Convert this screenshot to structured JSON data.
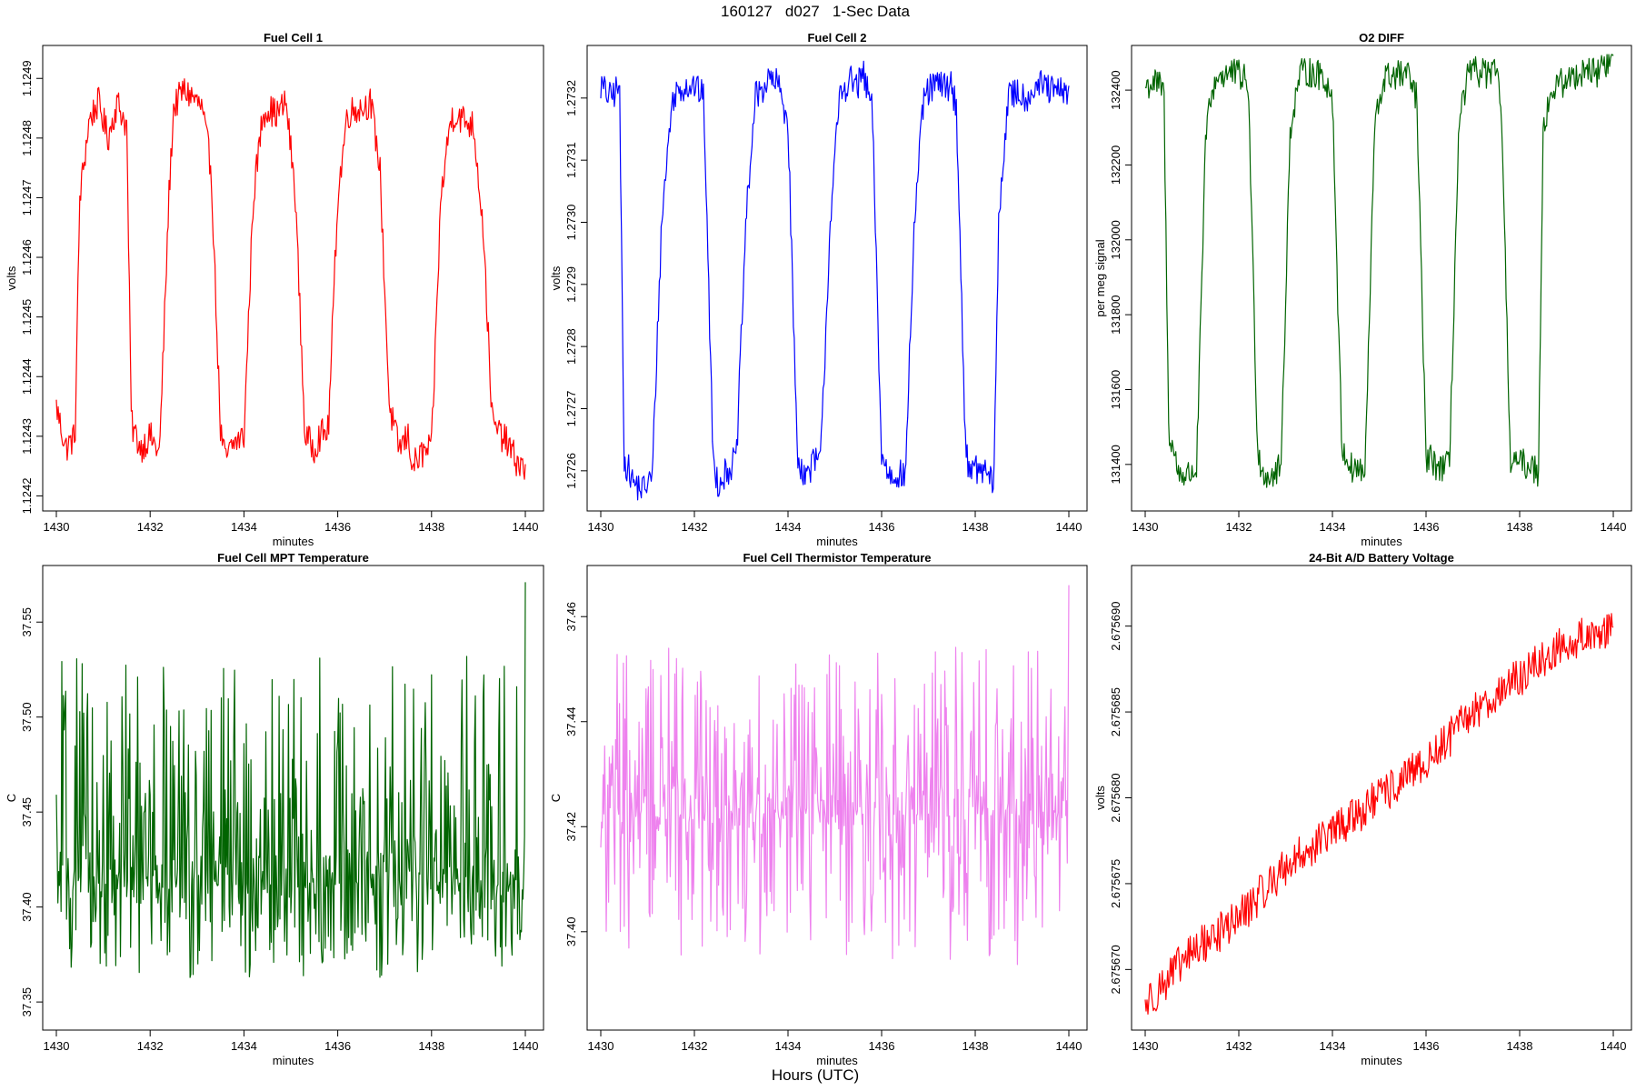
{
  "figure": {
    "title": "160127   d027   1-Sec Data",
    "xlabel": "Hours (UTC)"
  },
  "chart_data": [
    {
      "type": "line",
      "title": "Fuel Cell 1",
      "xlabel": "minutes",
      "ylabel": "volts",
      "color": "#ff0000",
      "xlim": [
        1430,
        1440
      ],
      "ylim": [
        1.12419,
        1.12494
      ],
      "xticks": [
        1430,
        1432,
        1434,
        1436,
        1438,
        1440
      ],
      "yticks": [
        1.1242,
        1.1243,
        1.1244,
        1.1245,
        1.1246,
        1.1247,
        1.1248,
        1.1249
      ],
      "ytick_labels": [
        "1.1242",
        "1.1243",
        "1.1244",
        "1.1245",
        "1.1246",
        "1.1247",
        "1.1248",
        "1.1249"
      ],
      "x": [
        1430.0,
        1430.2,
        1430.4,
        1430.5,
        1430.7,
        1430.9,
        1431.1,
        1431.3,
        1431.5,
        1431.6,
        1431.8,
        1432.0,
        1432.2,
        1432.4,
        1432.5,
        1432.7,
        1432.9,
        1433.1,
        1433.3,
        1433.5,
        1433.6,
        1433.8,
        1434.0,
        1434.2,
        1434.4,
        1434.5,
        1434.7,
        1434.9,
        1435.1,
        1435.3,
        1435.5,
        1435.6,
        1435.8,
        1436.0,
        1436.2,
        1436.4,
        1436.5,
        1436.7,
        1436.9,
        1437.1,
        1437.3,
        1437.5,
        1437.6,
        1437.8,
        1438.0,
        1438.2,
        1438.4,
        1438.5,
        1438.7,
        1438.9,
        1439.1,
        1439.3,
        1439.5,
        1439.6,
        1439.8,
        1440.0
      ],
      "y": [
        1.12435,
        1.12428,
        1.1243,
        1.1247,
        1.12483,
        1.12486,
        1.1248,
        1.12486,
        1.12482,
        1.12432,
        1.12428,
        1.1243,
        1.12427,
        1.1247,
        1.12485,
        1.12488,
        1.12487,
        1.12485,
        1.12475,
        1.12431,
        1.12426,
        1.12429,
        1.1243,
        1.1247,
        1.12484,
        1.12485,
        1.12484,
        1.12486,
        1.1247,
        1.1243,
        1.12428,
        1.1243,
        1.12431,
        1.1247,
        1.12484,
        1.12485,
        1.12485,
        1.12486,
        1.12475,
        1.12435,
        1.12428,
        1.1243,
        1.12425,
        1.12427,
        1.12428,
        1.1247,
        1.12483,
        1.12484,
        1.12483,
        1.12482,
        1.12465,
        1.12432,
        1.1243,
        1.12429,
        1.12426,
        1.12424
      ]
    },
    {
      "type": "line",
      "title": "Fuel Cell 2",
      "xlabel": "minutes",
      "ylabel": "volts",
      "color": "#0000ff",
      "xlim": [
        1430,
        1440
      ],
      "ylim": [
        1.27255,
        1.27327
      ],
      "xticks": [
        1430,
        1432,
        1434,
        1436,
        1438,
        1440
      ],
      "yticks": [
        1.2726,
        1.2727,
        1.2728,
        1.2729,
        1.273,
        1.2731,
        1.2732
      ],
      "ytick_labels": [
        "1.2726",
        "1.2727",
        "1.2728",
        "1.2729",
        "1.2730",
        "1.2731",
        "1.2732"
      ],
      "x": [
        1430.0,
        1430.2,
        1430.4,
        1430.5,
        1430.7,
        1430.9,
        1431.1,
        1431.3,
        1431.5,
        1431.6,
        1431.8,
        1432.0,
        1432.2,
        1432.4,
        1432.5,
        1432.7,
        1432.9,
        1433.1,
        1433.3,
        1433.5,
        1433.6,
        1433.8,
        1434.0,
        1434.2,
        1434.4,
        1434.5,
        1434.7,
        1434.9,
        1435.1,
        1435.3,
        1435.5,
        1435.6,
        1435.8,
        1436.0,
        1436.2,
        1436.4,
        1436.5,
        1436.7,
        1436.9,
        1437.1,
        1437.3,
        1437.5,
        1437.6,
        1437.8,
        1438.0,
        1438.2,
        1438.4,
        1438.5,
        1438.7,
        1438.9,
        1439.1,
        1439.3,
        1439.5,
        1439.6,
        1439.8,
        1440.0
      ],
      "y": [
        1.27322,
        1.2732,
        1.27322,
        1.27262,
        1.27258,
        1.27257,
        1.27259,
        1.273,
        1.27318,
        1.27321,
        1.27322,
        1.27322,
        1.2732,
        1.27262,
        1.27258,
        1.2726,
        1.27262,
        1.273,
        1.2732,
        1.27322,
        1.27323,
        1.27322,
        1.27316,
        1.27262,
        1.27259,
        1.27261,
        1.27262,
        1.273,
        1.2732,
        1.27323,
        1.27322,
        1.27324,
        1.27318,
        1.27262,
        1.27259,
        1.2726,
        1.27258,
        1.273,
        1.2732,
        1.27322,
        1.27322,
        1.27322,
        1.27318,
        1.27262,
        1.2726,
        1.2726,
        1.27258,
        1.273,
        1.2732,
        1.27321,
        1.2732,
        1.27322,
        1.27322,
        1.27321,
        1.27321,
        1.27321
      ]
    },
    {
      "type": "line",
      "title": "O2 DIFF",
      "xlabel": "minutes",
      "ylabel": "per meg signal",
      "color": "#006400",
      "xlim": [
        1430,
        1440
      ],
      "ylim": [
        131300,
        132495
      ],
      "xticks": [
        1430,
        1432,
        1434,
        1436,
        1438,
        1440
      ],
      "yticks": [
        131400,
        131600,
        131800,
        132000,
        132200,
        132400
      ],
      "ytick_labels": [
        "131400",
        "131600",
        "131800",
        "132000",
        "132200",
        "132400"
      ],
      "x": [
        1430.0,
        1430.2,
        1430.4,
        1430.5,
        1430.7,
        1430.9,
        1431.1,
        1431.3,
        1431.5,
        1431.6,
        1431.8,
        1432.0,
        1432.2,
        1432.4,
        1432.5,
        1432.7,
        1432.9,
        1433.1,
        1433.3,
        1433.5,
        1433.6,
        1433.8,
        1434.0,
        1434.2,
        1434.4,
        1434.5,
        1434.7,
        1434.9,
        1435.1,
        1435.3,
        1435.5,
        1435.6,
        1435.8,
        1436.0,
        1436.2,
        1436.4,
        1436.5,
        1436.7,
        1436.9,
        1437.1,
        1437.3,
        1437.5,
        1437.6,
        1437.8,
        1438.0,
        1438.2,
        1438.4,
        1438.5,
        1438.7,
        1438.9,
        1439.1,
        1439.3,
        1439.5,
        1439.6,
        1439.8,
        1440.0
      ],
      "y": [
        132410,
        132420,
        132400,
        131500,
        131380,
        131370,
        131390,
        132300,
        132430,
        132440,
        132445,
        132440,
        132420,
        131450,
        131380,
        131370,
        131390,
        132300,
        132440,
        132450,
        132440,
        132440,
        132380,
        131450,
        131390,
        131390,
        131380,
        132300,
        132430,
        132440,
        132440,
        132440,
        132380,
        131420,
        131400,
        131390,
        131400,
        132300,
        132440,
        132450,
        132445,
        132440,
        132380,
        131420,
        131400,
        131400,
        131380,
        132300,
        132400,
        132420,
        132430,
        132450,
        132460,
        132440,
        132470,
        132480
      ]
    },
    {
      "type": "line",
      "title": "Fuel Cell MPT Temperature",
      "xlabel": "minutes",
      "ylabel": "C",
      "color": "#006400",
      "xlim": [
        1430,
        1440
      ],
      "ylim": [
        37.34,
        37.575
      ],
      "xticks": [
        1430,
        1432,
        1434,
        1436,
        1438,
        1440
      ],
      "yticks": [
        37.35,
        37.4,
        37.45,
        37.5,
        37.55
      ],
      "ytick_labels": [
        "37.35",
        "37.40",
        "37.45",
        "37.50",
        "37.55"
      ],
      "noise_mean": 37.415,
      "noise_min": 37.343,
      "noise_max": 37.571
    },
    {
      "type": "line",
      "title": "Fuel Cell Thermistor Temperature",
      "xlabel": "minutes",
      "ylabel": "C",
      "color": "#ee82ee",
      "xlim": [
        1430,
        1440
      ],
      "ylim": [
        37.383,
        37.468
      ],
      "xticks": [
        1430,
        1432,
        1434,
        1436,
        1438,
        1440
      ],
      "yticks": [
        37.4,
        37.42,
        37.44,
        37.46
      ],
      "ytick_labels": [
        "37.40",
        "37.42",
        "37.44",
        "37.46"
      ],
      "noise_mean": 37.423,
      "noise_min": 37.385,
      "noise_max": 37.466
    },
    {
      "type": "line",
      "title": "24-Bit A/D Battery Voltage",
      "xlabel": "minutes",
      "ylabel": "volts",
      "color": "#ff0000",
      "xlim": [
        1430,
        1440
      ],
      "ylim": [
        2.675667,
        2.675693
      ],
      "xticks": [
        1430,
        1432,
        1434,
        1436,
        1438,
        1440
      ],
      "yticks": [
        2.67567,
        2.675675,
        2.67568,
        2.675685,
        2.67569
      ],
      "ytick_labels": [
        "2.675670",
        "2.675675",
        "2.675680",
        "2.675685",
        "2.675690"
      ],
      "x": [
        1430,
        1431,
        1432,
        1433,
        1434,
        1435,
        1436,
        1437,
        1438,
        1439,
        1440
      ],
      "y": [
        2.675668,
        2.675671,
        2.675673,
        2.675676,
        2.675678,
        2.67568,
        2.675682,
        2.675685,
        2.675687,
        2.675689,
        2.67569
      ]
    }
  ]
}
